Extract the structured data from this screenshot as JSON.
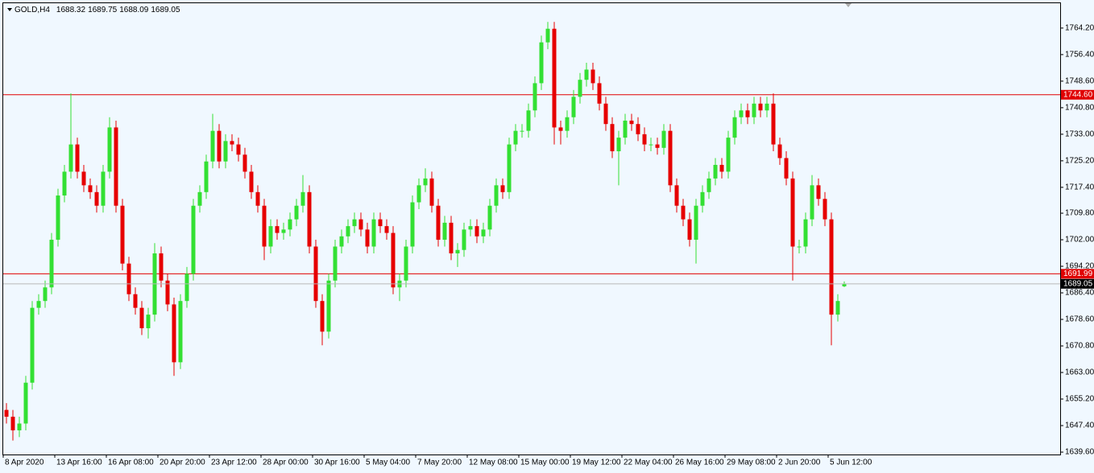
{
  "chart_data": {
    "type": "candlestick",
    "symbol": "GOLD,H4",
    "categories": [
      "8 Apr 2020",
      null,
      null,
      null,
      null,
      null,
      null,
      null,
      "13 Apr 16:00",
      null,
      null,
      null,
      null,
      null,
      null,
      null,
      "16 Apr 08:00",
      null,
      null,
      null,
      null,
      null,
      null,
      null,
      "20 Apr 20:00",
      null,
      null,
      null,
      null,
      null,
      null,
      null,
      "23 Apr 12:00",
      null,
      null,
      null,
      null,
      null,
      null,
      null,
      "28 Apr 00:00",
      null,
      null,
      null,
      null,
      null,
      null,
      null,
      "30 Apr 16:00",
      null,
      null,
      null,
      null,
      null,
      null,
      null,
      "5 May 04:00",
      null,
      null,
      null,
      null,
      null,
      null,
      null,
      "7 May 20:00",
      null,
      null,
      null,
      null,
      null,
      null,
      null,
      "12 May 08:00",
      null,
      null,
      null,
      null,
      null,
      null,
      null,
      "15 May 00:00",
      null,
      null,
      null,
      null,
      null,
      null,
      null,
      "19 May 12:00",
      null,
      null,
      null,
      null,
      null,
      null,
      null,
      "22 May 04:00",
      null,
      null,
      null,
      null,
      null,
      null,
      null,
      "26 May 16:00",
      null,
      null,
      null,
      null,
      null,
      null,
      null,
      "29 May 08:00",
      null,
      null,
      null,
      null,
      null,
      null,
      null,
      "2 Jun 20:00",
      null,
      null,
      null,
      null,
      null,
      null,
      null,
      "5 Jun 12:00",
      null,
      null
    ],
    "open": [
      1652,
      1650,
      1646,
      1648,
      1660,
      1682,
      1684,
      1688,
      1702,
      1715,
      1722,
      1730,
      1722,
      1718,
      1716,
      1712,
      1722,
      1735,
      1712,
      1695,
      1686,
      1682,
      1676,
      1680,
      1698,
      1690,
      1683,
      1666,
      1684,
      1692,
      1712,
      1716,
      1725,
      1734,
      1725,
      1731,
      1730,
      1727,
      1722,
      1716,
      1712,
      1700,
      1706,
      1704,
      1705,
      1708,
      1712,
      1716,
      1700,
      1684,
      1675,
      1690,
      1700,
      1703,
      1706,
      1708,
      1705,
      1700,
      1708,
      1706,
      1704,
      1688,
      1690,
      1700,
      1713,
      1718,
      1720,
      1712,
      1702,
      1707,
      1698,
      1699,
      1705,
      1706,
      1703,
      1705,
      1712,
      1718,
      1716,
      1730,
      1734,
      1734,
      1740,
      1748,
      1760,
      1764,
      1735,
      1734,
      1738,
      1744,
      1749,
      1752,
      1748,
      1742,
      1736,
      1728,
      1732,
      1737,
      1736,
      1733,
      1730,
      1730,
      1729,
      1734,
      1718,
      1712,
      1708,
      1702,
      1712,
      1716,
      1720,
      1724,
      1722,
      1732,
      1738,
      1740,
      1738,
      1742,
      1740,
      1742,
      1730,
      1726,
      1720,
      1700,
      1700,
      1708,
      1718,
      1714,
      1708,
      1680,
      1688.32
    ],
    "high": [
      1654,
      1652,
      1650,
      1662,
      1684,
      1686,
      1690,
      1704,
      1717,
      1724,
      1745,
      1732,
      1724,
      1720,
      1718,
      1724,
      1738,
      1737,
      1714,
      1697,
      1688,
      1684,
      1682,
      1701,
      1700,
      1692,
      1685,
      1686,
      1694,
      1714,
      1718,
      1727,
      1739,
      1736,
      1733,
      1733,
      1732,
      1729,
      1724,
      1718,
      1714,
      1708,
      1708,
      1707,
      1710,
      1714,
      1721,
      1718,
      1702,
      1686,
      1692,
      1702,
      1705,
      1708,
      1710,
      1710,
      1707,
      1710,
      1710,
      1708,
      1706,
      1692,
      1702,
      1715,
      1720,
      1723,
      1722,
      1714,
      1709,
      1709,
      1701,
      1707,
      1708,
      1708,
      1707,
      1714,
      1720,
      1720,
      1732,
      1736,
      1736,
      1742,
      1750,
      1762,
      1766,
      1766,
      1737,
      1740,
      1746,
      1751,
      1754,
      1754,
      1750,
      1744,
      1738,
      1734,
      1739,
      1739,
      1738,
      1735,
      1732,
      1732,
      1736,
      1736,
      1720,
      1714,
      1710,
      1714,
      1718,
      1722,
      1726,
      1726,
      1734,
      1740,
      1742,
      1742,
      1744,
      1744,
      1744,
      1745,
      1732,
      1728,
      1722,
      1702,
      1710,
      1721,
      1720,
      1716,
      1710,
      1686,
      1689.75
    ],
    "low": [
      1648,
      1643,
      1644,
      1646,
      1658,
      1680,
      1682,
      1686,
      1700,
      1713,
      1720,
      1720,
      1716,
      1714,
      1710,
      1710,
      1720,
      1710,
      1693,
      1684,
      1680,
      1674,
      1673,
      1678,
      1688,
      1681,
      1662,
      1664,
      1682,
      1690,
      1710,
      1714,
      1723,
      1723,
      1723,
      1728,
      1725,
      1720,
      1714,
      1710,
      1696,
      1698,
      1702,
      1702,
      1703,
      1706,
      1710,
      1698,
      1682,
      1671,
      1673,
      1688,
      1698,
      1701,
      1704,
      1703,
      1698,
      1698,
      1704,
      1702,
      1686,
      1684,
      1688,
      1698,
      1711,
      1716,
      1710,
      1700,
      1700,
      1696,
      1694,
      1697,
      1703,
      1701,
      1701,
      1703,
      1710,
      1714,
      1714,
      1728,
      1732,
      1732,
      1738,
      1746,
      1758,
      1730,
      1730,
      1732,
      1736,
      1742,
      1747,
      1746,
      1740,
      1734,
      1726,
      1718,
      1730,
      1734,
      1731,
      1728,
      1728,
      1727,
      1727,
      1716,
      1710,
      1706,
      1700,
      1695,
      1710,
      1714,
      1718,
      1720,
      1720,
      1730,
      1736,
      1736,
      1736,
      1738,
      1738,
      1728,
      1724,
      1718,
      1690,
      1698,
      1698,
      1706,
      1712,
      1706,
      1671,
      1678,
      1688.09
    ],
    "close": [
      1650,
      1646,
      1648,
      1660,
      1682,
      1684,
      1688,
      1702,
      1715,
      1722,
      1730,
      1722,
      1718,
      1716,
      1712,
      1722,
      1735,
      1712,
      1695,
      1686,
      1682,
      1676,
      1680,
      1698,
      1690,
      1683,
      1666,
      1684,
      1692,
      1712,
      1716,
      1725,
      1734,
      1725,
      1731,
      1730,
      1727,
      1722,
      1716,
      1712,
      1700,
      1706,
      1704,
      1705,
      1708,
      1712,
      1716,
      1700,
      1684,
      1675,
      1690,
      1700,
      1703,
      1706,
      1708,
      1705,
      1700,
      1708,
      1706,
      1704,
      1688,
      1690,
      1700,
      1713,
      1718,
      1720,
      1712,
      1702,
      1707,
      1698,
      1699,
      1705,
      1706,
      1703,
      1705,
      1712,
      1718,
      1716,
      1730,
      1734,
      1734,
      1740,
      1748,
      1760,
      1764,
      1735,
      1734,
      1738,
      1744,
      1749,
      1752,
      1748,
      1742,
      1736,
      1728,
      1732,
      1737,
      1736,
      1733,
      1730,
      1730,
      1729,
      1734,
      1718,
      1712,
      1708,
      1702,
      1712,
      1716,
      1720,
      1724,
      1722,
      1732,
      1738,
      1740,
      1738,
      1742,
      1740,
      1742,
      1730,
      1726,
      1720,
      1700,
      1700,
      1708,
      1718,
      1714,
      1708,
      1680,
      1684,
      1689.05
    ],
    "up_color": "#33e033",
    "down_color": "#e60000",
    "ylim": [
      1638.9,
      1771.5
    ],
    "yticks": [
      {
        "value": 1764.2,
        "label": "1764.20"
      },
      {
        "value": 1756.4,
        "label": "1756.40"
      },
      {
        "value": 1748.6,
        "label": "1748.60"
      },
      {
        "value": 1740.8,
        "label": "1740.80"
      },
      {
        "value": 1733,
        "label": "1733.00"
      },
      {
        "value": 1725.2,
        "label": "1725.20"
      },
      {
        "value": 1717.4,
        "label": "1717.40"
      },
      {
        "value": 1709.8,
        "label": "1709.80"
      },
      {
        "value": 1702,
        "label": "1702.00"
      },
      {
        "value": 1694.2,
        "label": "1694.20"
      },
      {
        "value": 1686.4,
        "label": "1686.40"
      },
      {
        "value": 1678.6,
        "label": "1678.60"
      },
      {
        "value": 1670.8,
        "label": "1670.80"
      },
      {
        "value": 1663,
        "label": "1663.00"
      },
      {
        "value": 1655.2,
        "label": "1655.20"
      },
      {
        "value": 1647.4,
        "label": "1647.40"
      },
      {
        "value": 1639.6,
        "label": "1639.60"
      }
    ],
    "levels": [
      {
        "value": 1744.6,
        "label": "1744.60"
      },
      1691.99
    ],
    "level_color": "#e00000",
    "bid_color": "#b8b8b8"
  }
}
